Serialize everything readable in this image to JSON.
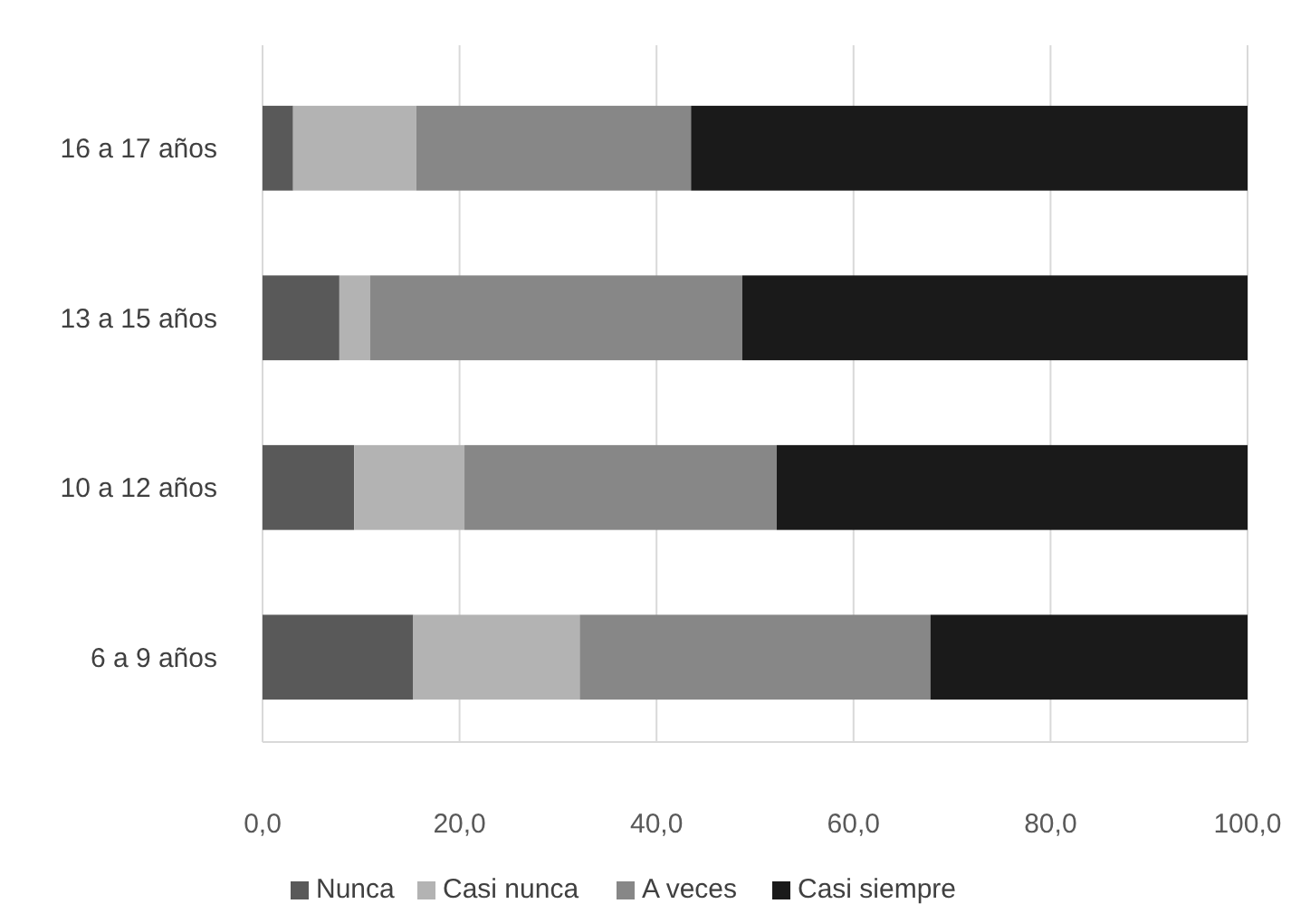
{
  "chart_data": {
    "type": "bar",
    "orientation": "horizontal",
    "stacked": true,
    "categories": [
      "16 a 17 años",
      "13 a 15 años",
      "10 a 12 años",
      "6 a 9 años"
    ],
    "series": [
      {
        "name": "Nunca",
        "color": "#595959",
        "values": [
          3.1,
          7.8,
          9.3,
          15.3
        ]
      },
      {
        "name": "Casi nunca",
        "color": "#b3b3b3",
        "values": [
          12.5,
          3.1,
          11.2,
          16.9
        ]
      },
      {
        "name": "A veces",
        "color": "#878787",
        "values": [
          27.9,
          37.8,
          31.7,
          35.6
        ]
      },
      {
        "name": "Casi siempre",
        "color": "#1a1a1a",
        "values": [
          56.5,
          51.3,
          47.8,
          32.2
        ]
      }
    ],
    "xlim": [
      0,
      100
    ],
    "xticks": [
      {
        "value": 0,
        "label": "0,0"
      },
      {
        "value": 20,
        "label": "20,0"
      },
      {
        "value": 40,
        "label": "40,0"
      },
      {
        "value": 60,
        "label": "60,0"
      },
      {
        "value": 80,
        "label": "80,0"
      },
      {
        "value": 100,
        "label": "100,0"
      }
    ],
    "grid": "x",
    "legend": "bottom"
  }
}
